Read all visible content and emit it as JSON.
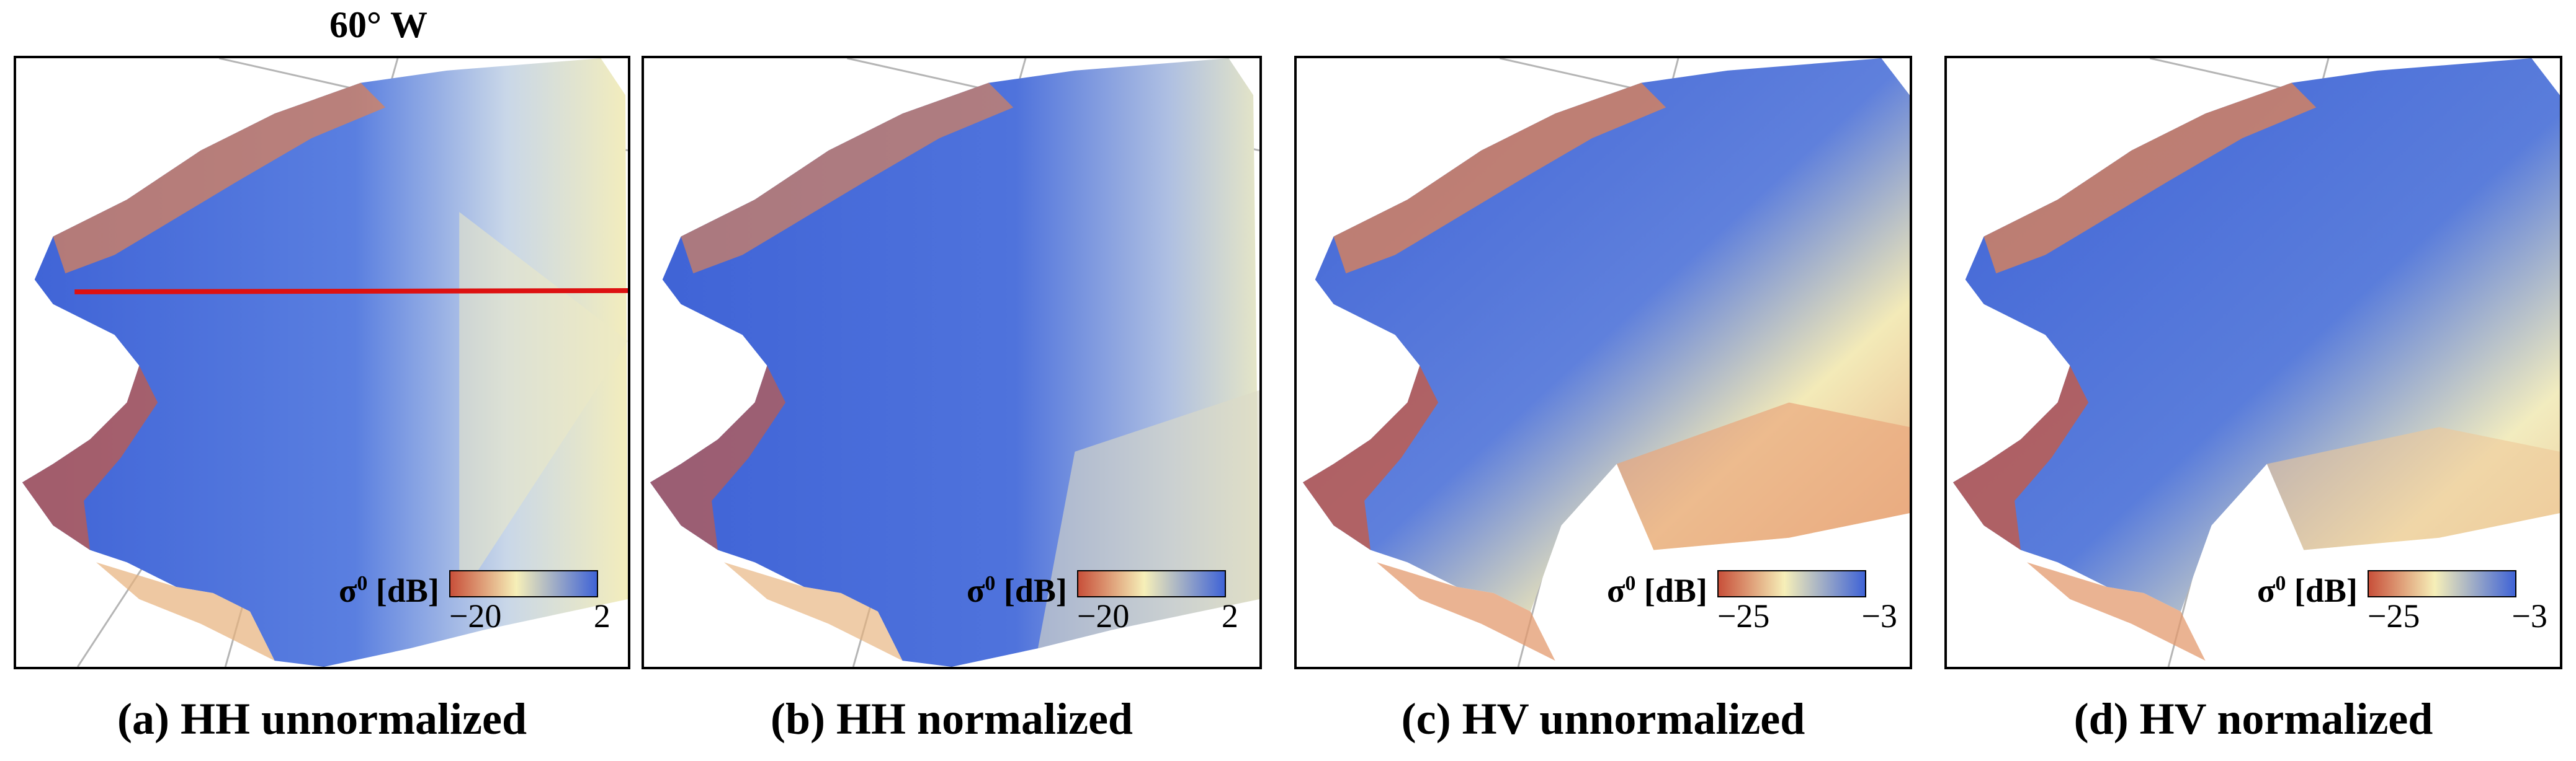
{
  "top_label": "60° W",
  "panels": [
    {
      "caption": "(a) HH unnormalized",
      "legend_title": "σ",
      "legend_sup": "0",
      "legend_unit": " [dB]",
      "tick_min": "−20",
      "tick_max": "2"
    },
    {
      "caption": "(b) HH normalized",
      "legend_title": "σ",
      "legend_sup": "0",
      "legend_unit": " [dB]",
      "tick_min": "−20",
      "tick_max": "2"
    },
    {
      "caption": "(c) HV unnormalized",
      "legend_title": "σ",
      "legend_sup": "0",
      "legend_unit": " [dB]",
      "tick_min": "−25",
      "tick_max": "−3"
    },
    {
      "caption": "(d) HV normalized",
      "legend_title": "σ",
      "legend_sup": "0",
      "legend_unit": " [dB]",
      "tick_min": "−25",
      "tick_max": "−3"
    }
  ],
  "colors": {
    "low": "#c8503a",
    "mid": "#f6efb8",
    "high": "#3f63d6",
    "transect": "#dd1111",
    "grid": "#b5b5b5"
  }
}
